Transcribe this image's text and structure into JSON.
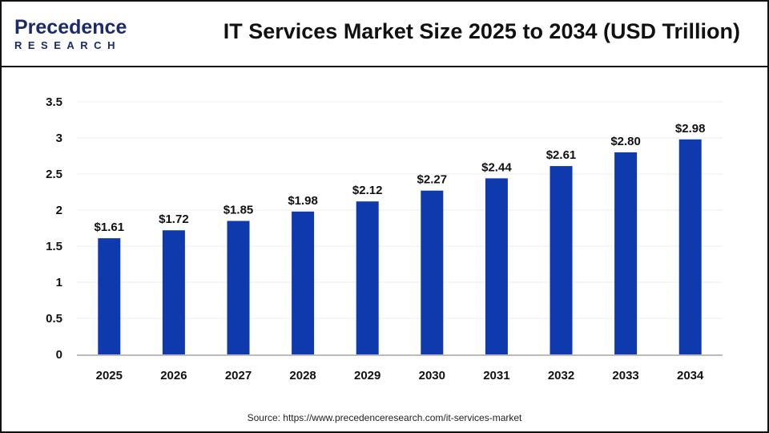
{
  "brand": {
    "logo_line1": "Precedence",
    "logo_line2": "RESEARCH"
  },
  "source": "Source: https://www.precedenceresearch.com/it-services-market",
  "colors": {
    "bar": "#0f3aad",
    "axis": "#bbbbbb",
    "grid": "#eeeeee"
  },
  "chart_data": {
    "type": "bar",
    "title": "IT Services Market Size 2025 to 2034 (USD Trillion)",
    "categories": [
      "2025",
      "2026",
      "2027",
      "2028",
      "2029",
      "2030",
      "2031",
      "2032",
      "2033",
      "2034"
    ],
    "values": [
      1.61,
      1.72,
      1.85,
      1.98,
      2.12,
      2.27,
      2.44,
      2.61,
      2.8,
      2.98
    ],
    "data_labels": [
      "$1.61",
      "$1.72",
      "$1.85",
      "$1.98",
      "$2.12",
      "$2.27",
      "$2.44",
      "$2.61",
      "$2.80",
      "$2.98"
    ],
    "yticks": [
      "0",
      "0.5",
      "1",
      "1.5",
      "2",
      "2.5",
      "3",
      "3.5"
    ],
    "ylim": [
      0,
      3.5
    ],
    "xlabel": "",
    "ylabel": "",
    "grid": true
  }
}
